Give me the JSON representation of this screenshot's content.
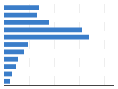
{
  "chart_data": {
    "type": "bar",
    "orientation": "horizontal",
    "categories": [
      null,
      null,
      null,
      null,
      null,
      null,
      null,
      null,
      null,
      null,
      null
    ],
    "values": [
      35,
      33,
      45,
      78,
      85,
      24,
      20,
      14,
      12,
      8,
      6
    ],
    "color": "#3a7dc9",
    "xlim": [
      0,
      110
    ],
    "xticks": [
      25,
      50,
      75,
      100
    ],
    "grid": true,
    "tick_labels": false
  }
}
